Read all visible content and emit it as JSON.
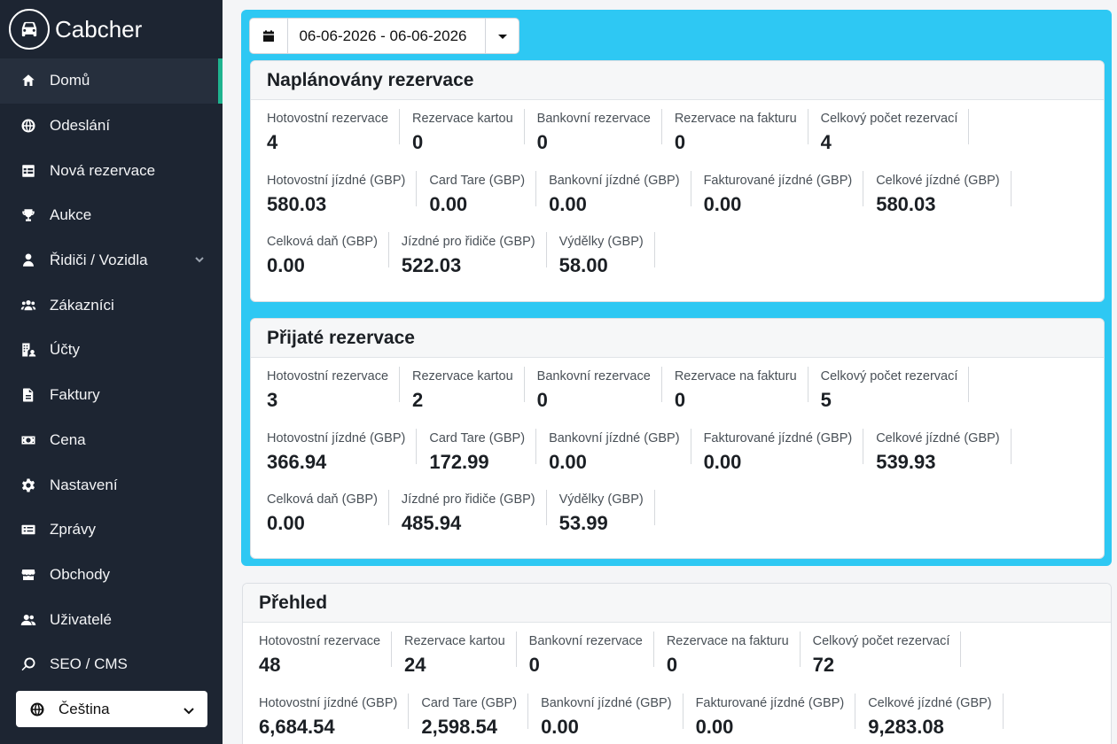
{
  "brand": {
    "name": "Cabcher",
    "icon": "car-icon"
  },
  "sidebar": {
    "items": [
      {
        "label": "Domů",
        "icon": "home-icon",
        "active": true
      },
      {
        "label": "Odeslání",
        "icon": "globe-icon"
      },
      {
        "label": "Nová rezervace",
        "icon": "table-icon"
      },
      {
        "label": "Aukce",
        "icon": "trophy-icon"
      },
      {
        "label": "Řidiči / Vozidla",
        "icon": "driver-icon",
        "expandable": true
      },
      {
        "label": "Zákazníci",
        "icon": "users-icon"
      },
      {
        "label": "Účty",
        "icon": "building-user-icon"
      },
      {
        "label": "Faktury",
        "icon": "file-icon"
      },
      {
        "label": "Cena",
        "icon": "money-icon"
      },
      {
        "label": "Nastavení",
        "icon": "gear-icon"
      },
      {
        "label": "Zprávy",
        "icon": "list-icon"
      },
      {
        "label": "Obchody",
        "icon": "store-icon"
      },
      {
        "label": "Uživatelé",
        "icon": "user-group-icon"
      },
      {
        "label": "SEO / CMS",
        "icon": "search-icon"
      }
    ],
    "language": {
      "label": "Čeština",
      "icon": "globe-icon"
    }
  },
  "filter": {
    "date_range": "06-06-2026 - 06-06-2026",
    "accent_color": "#2ec8f3"
  },
  "sections": {
    "planned": {
      "title": "Naplánovány rezervace",
      "rows": [
        [
          {
            "label": "Hotovostní rezervace",
            "value": "4"
          },
          {
            "label": "Rezervace kartou",
            "value": "0"
          },
          {
            "label": "Bankovní rezervace",
            "value": "0"
          },
          {
            "label": "Rezervace na fakturu",
            "value": "0"
          },
          {
            "label": "Celkový počet rezervací",
            "value": "4"
          }
        ],
        [
          {
            "label": "Hotovostní jízdné (GBP)",
            "value": "580.03"
          },
          {
            "label": "Card Tare (GBP)",
            "value": "0.00"
          },
          {
            "label": "Bankovní jízdné (GBP)",
            "value": "0.00"
          },
          {
            "label": "Fakturované jízdné (GBP)",
            "value": "0.00"
          },
          {
            "label": "Celkové jízdné (GBP)",
            "value": "580.03"
          }
        ],
        [
          {
            "label": "Celková daň (GBP)",
            "value": "0.00"
          },
          {
            "label": "Jízdné pro řidiče (GBP)",
            "value": "522.03"
          },
          {
            "label": "Výdělky (GBP)",
            "value": "58.00"
          }
        ]
      ]
    },
    "accepted": {
      "title": "Přijaté rezervace",
      "rows": [
        [
          {
            "label": "Hotovostní rezervace",
            "value": "3"
          },
          {
            "label": "Rezervace kartou",
            "value": "2"
          },
          {
            "label": "Bankovní rezervace",
            "value": "0"
          },
          {
            "label": "Rezervace na fakturu",
            "value": "0"
          },
          {
            "label": "Celkový počet rezervací",
            "value": "5"
          }
        ],
        [
          {
            "label": "Hotovostní jízdné (GBP)",
            "value": "366.94"
          },
          {
            "label": "Card Tare (GBP)",
            "value": "172.99"
          },
          {
            "label": "Bankovní jízdné (GBP)",
            "value": "0.00"
          },
          {
            "label": "Fakturované jízdné (GBP)",
            "value": "0.00"
          },
          {
            "label": "Celkové jízdné (GBP)",
            "value": "539.93"
          }
        ],
        [
          {
            "label": "Celková daň (GBP)",
            "value": "0.00"
          },
          {
            "label": "Jízdné pro řidiče (GBP)",
            "value": "485.94"
          },
          {
            "label": "Výdělky (GBP)",
            "value": "53.99"
          }
        ]
      ]
    },
    "overview": {
      "title": "Přehled",
      "rows": [
        [
          {
            "label": "Hotovostní rezervace",
            "value": "48"
          },
          {
            "label": "Rezervace kartou",
            "value": "24"
          },
          {
            "label": "Bankovní rezervace",
            "value": "0"
          },
          {
            "label": "Rezervace na fakturu",
            "value": "0"
          },
          {
            "label": "Celkový počet rezervací",
            "value": "72"
          }
        ],
        [
          {
            "label": "Hotovostní jízdné (GBP)",
            "value": "6,684.54"
          },
          {
            "label": "Card Tare (GBP)",
            "value": "2,598.54"
          },
          {
            "label": "Bankovní jízdné (GBP)",
            "value": "0.00"
          },
          {
            "label": "Fakturované jízdné (GBP)",
            "value": "0.00"
          },
          {
            "label": "Celkové jízdné (GBP)",
            "value": "9,283.08"
          }
        ]
      ]
    }
  }
}
